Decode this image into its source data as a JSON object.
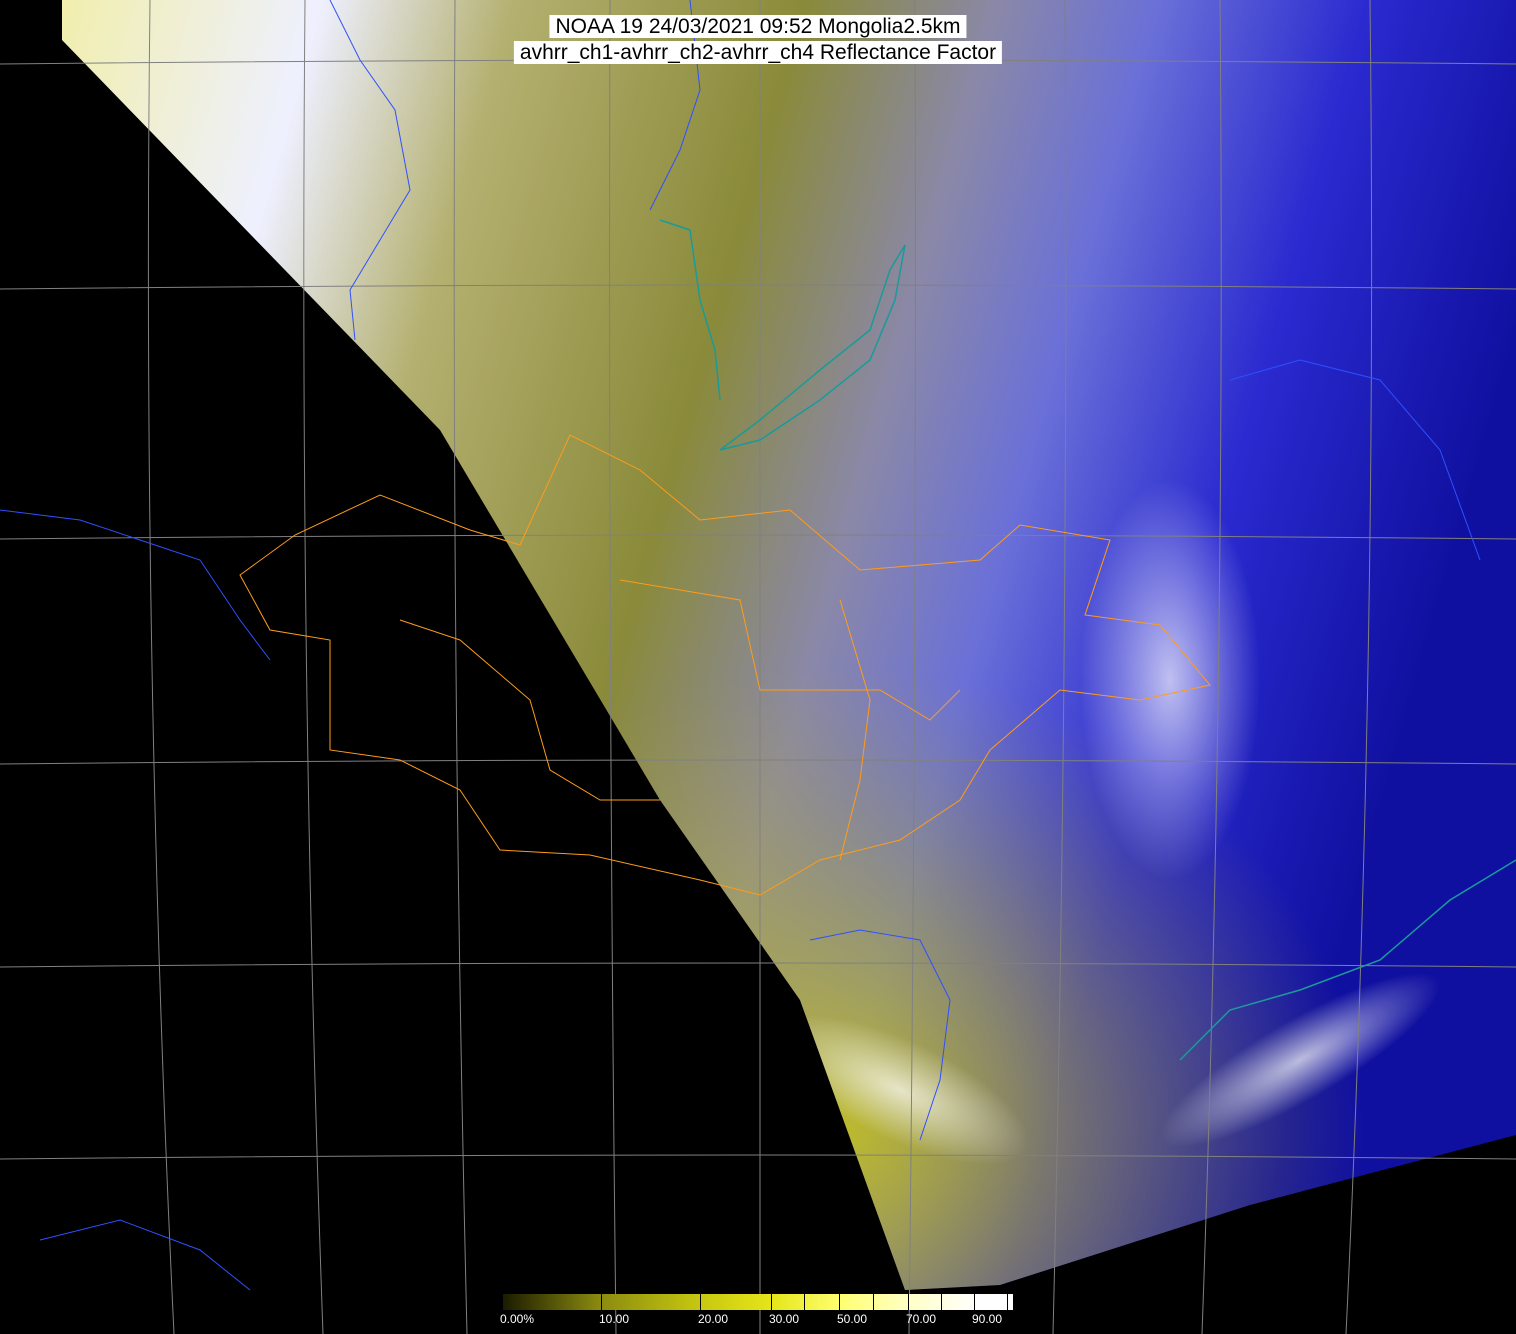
{
  "title": {
    "line1": "NOAA 19 24/03/2021 09:52 Mongolia2.5km",
    "line2": "avhrr_ch1-avhrr_ch2-avhrr_ch4 Reflectance Factor"
  },
  "colorbar": {
    "labels": [
      "0.00%",
      "10.00",
      "20.00",
      "30.00",
      "50.00",
      "70.00",
      "90.00"
    ],
    "colors": [
      "#1a1a00",
      "#8a8a10",
      "#c8c810",
      "#e6e61a",
      "#ffff70",
      "#ffffc8",
      "#ffffff"
    ]
  },
  "colors": {
    "background": "#000000",
    "province_borders": "#ff9c1a",
    "country_borders": "#3050ff",
    "coastlines": "#1a9a9a",
    "grid": "#808080"
  }
}
